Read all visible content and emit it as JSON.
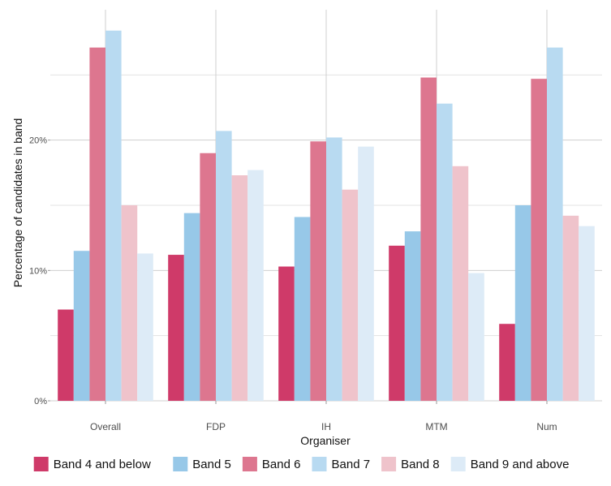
{
  "chart_data": {
    "type": "bar",
    "title": "",
    "xlabel": "Organiser",
    "ylabel": "Percentage of candidates in band",
    "ylim": [
      0,
      30
    ],
    "yticks": [
      0,
      10,
      20
    ],
    "ytick_labels": [
      "0%",
      "10%",
      "20%"
    ],
    "y_minor_gridlines": [
      5,
      15,
      25
    ],
    "grid": true,
    "legend_position": "bottom",
    "categories": [
      "Overall",
      "FDP",
      "IH",
      "MTM",
      "Num"
    ],
    "series": [
      {
        "name": "Band 4 and below",
        "color": "#cf3a69",
        "values": [
          7.0,
          11.2,
          10.3,
          11.9,
          5.9
        ]
      },
      {
        "name": "Band 5",
        "color": "#97c8e8",
        "values": [
          11.5,
          14.4,
          14.1,
          13.0,
          15.0
        ]
      },
      {
        "name": "Band 6",
        "color": "#dd768f",
        "values": [
          27.1,
          19.0,
          19.9,
          24.8,
          24.7
        ]
      },
      {
        "name": "Band 7",
        "color": "#b8daf1",
        "values": [
          28.4,
          20.7,
          20.2,
          22.8,
          27.1
        ]
      },
      {
        "name": "Band 8",
        "color": "#efc3cb",
        "values": [
          15.0,
          17.3,
          16.2,
          18.0,
          14.2
        ]
      },
      {
        "name": "Band 9 and above",
        "color": "#ddebf7",
        "values": [
          11.3,
          17.7,
          19.5,
          9.8,
          13.4
        ]
      }
    ]
  }
}
